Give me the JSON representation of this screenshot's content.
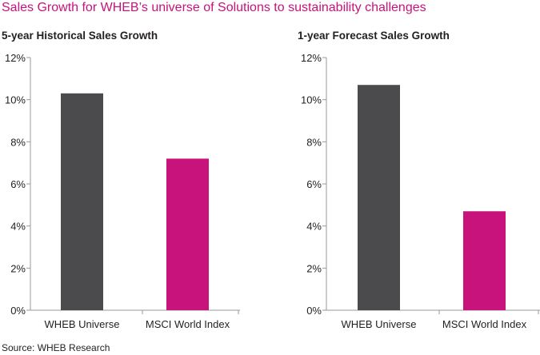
{
  "title": "Sales Growth for WHEB’s universe of Solutions to sustainability challenges",
  "source": "Source: WHEB Research",
  "colors": {
    "title": "#c7137b",
    "wheb": "#4b4b4d",
    "msci": "#c7137b",
    "axis": "#9a9a9a"
  },
  "chart_data": [
    {
      "type": "bar",
      "title": "5-year Historical Sales Growth",
      "categories": [
        "WHEB Universe",
        "MSCI World Index"
      ],
      "values": [
        10.3,
        7.2
      ],
      "colors": [
        "#4b4b4d",
        "#c7137b"
      ],
      "ylim": [
        0,
        12
      ],
      "yticks": [
        0,
        2,
        4,
        6,
        8,
        10,
        12
      ],
      "ytick_labels": [
        "0%",
        "2%",
        "4%",
        "6%",
        "8%",
        "10%",
        "12%"
      ],
      "xlabel": "",
      "ylabel": "",
      "grid": false,
      "legend": false
    },
    {
      "type": "bar",
      "title": "1-year Forecast Sales Growth",
      "categories": [
        "WHEB Universe",
        "MSCI World Index"
      ],
      "values": [
        10.7,
        4.7
      ],
      "colors": [
        "#4b4b4d",
        "#c7137b"
      ],
      "ylim": [
        0,
        12
      ],
      "yticks": [
        0,
        2,
        4,
        6,
        8,
        10,
        12
      ],
      "ytick_labels": [
        "0%",
        "2%",
        "4%",
        "6%",
        "8%",
        "10%",
        "12%"
      ],
      "xlabel": "",
      "ylabel": "",
      "grid": false,
      "legend": false
    }
  ]
}
